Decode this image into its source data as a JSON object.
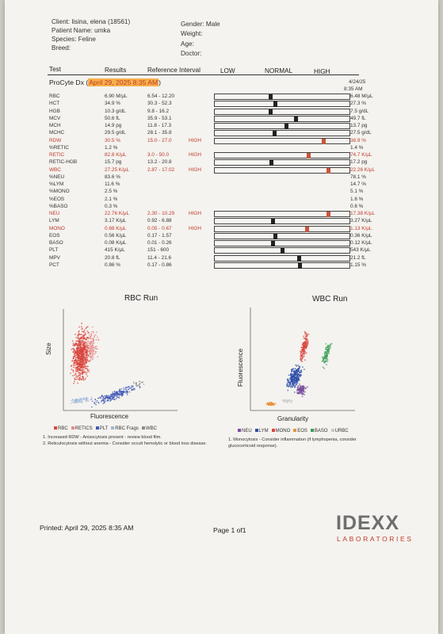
{
  "patient": {
    "client": "Client: lisina, elena (18561)",
    "patient": "Patient Name: umka",
    "species": "Species: Feline",
    "breed": "Breed:",
    "gender": "Gender: Male",
    "weight": "Weight:",
    "age": "Age:",
    "doctor": "Doctor:"
  },
  "columns": {
    "test": "Test",
    "results": "Results",
    "reference": "Reference Interval",
    "low": "LOW",
    "normal": "NORMAL",
    "high": "HIGH"
  },
  "run": {
    "prefix": "ProCyte Dx (",
    "date": "April 29, 2025 8:35 AM",
    "suffix": ")",
    "right_date": "4/24/25",
    "right_time": "8:35 AM"
  },
  "rows": [
    {
      "test": "RBC",
      "result": "6.90 M/µL",
      "ref": "6.54 - 12.20",
      "flag": "",
      "right": "6.48 M/µL",
      "abnormal": false,
      "marker": 0.41
    },
    {
      "test": "HCT",
      "result": "34.9 %",
      "ref": "30.3 - 52.3",
      "flag": "",
      "right": "27.3 %",
      "abnormal": false,
      "marker": 0.45
    },
    {
      "test": "HGB",
      "result": "10.3 g/dL",
      "ref": "9.8 - 16.2",
      "flag": "",
      "right": "7.5 g/dL",
      "abnormal": false,
      "marker": 0.41
    },
    {
      "test": "MCV",
      "result": "50.6 fL",
      "ref": "35.9 - 53.1",
      "flag": "",
      "right": "49.7 fL",
      "abnormal": false,
      "marker": 0.6
    },
    {
      "test": "MCH",
      "result": "14.9 pg",
      "ref": "11.8 - 17.3",
      "flag": "",
      "right": "13.7 pg",
      "abnormal": false,
      "marker": 0.53
    },
    {
      "test": "MCHC",
      "result": "29.5 g/dL",
      "ref": "28.1 - 35.8",
      "flag": "",
      "right": "27.5 g/dL",
      "abnormal": false,
      "marker": 0.44
    },
    {
      "test": "RDW",
      "result": "30.5 %",
      "ref": "15.0 - 27.0",
      "flag": "HIGH",
      "right": "38.9 %",
      "abnormal": true,
      "marker": 0.8
    },
    {
      "test": "%RETIC",
      "result": "1.2 %",
      "ref": "",
      "flag": "",
      "right": "1.4 %",
      "abnormal": false,
      "marker": null
    },
    {
      "test": "RETIC",
      "result": "82.8 K/µL",
      "ref": "3.0 - 50.0",
      "flag": "HIGH",
      "right": "74.7 K/µL",
      "abnormal": true,
      "marker": 0.69
    },
    {
      "test": "RETIC-HGB",
      "result": "15.7 pg",
      "ref": "13.2 - 20.8",
      "flag": "",
      "right": "17.2 pg",
      "abnormal": false,
      "marker": 0.42
    },
    {
      "test": "WBC",
      "result": "27.25 K/µL",
      "ref": "2.87 - 17.02",
      "flag": "HIGH",
      "right": "22.26 K/µL",
      "abnormal": true,
      "marker": 0.84
    },
    {
      "test": "%NEU",
      "result": "83.6 %",
      "ref": "",
      "flag": "",
      "right": "78.1 %",
      "abnormal": false,
      "marker": null
    },
    {
      "test": "%LYM",
      "result": "11.6 %",
      "ref": "",
      "flag": "",
      "right": "14.7 %",
      "abnormal": false,
      "marker": null
    },
    {
      "test": "%MONO",
      "result": "2.5 %",
      "ref": "",
      "flag": "",
      "right": "5.1 %",
      "abnormal": false,
      "marker": null
    },
    {
      "test": "%EOS",
      "result": "2.1 %",
      "ref": "",
      "flag": "",
      "right": "1.6 %",
      "abnormal": false,
      "marker": null
    },
    {
      "test": "%BASO",
      "result": "0.3 %",
      "ref": "",
      "flag": "",
      "right": "0.6 %",
      "abnormal": false,
      "marker": null
    },
    {
      "test": "NEU",
      "result": "22.76 K/µL",
      "ref": "2.30 - 10.29",
      "flag": "HIGH",
      "right": "17.38 K/µL",
      "abnormal": true,
      "marker": 0.84
    },
    {
      "test": "LYM",
      "result": "3.17 K/µL",
      "ref": "0.92 - 6.88",
      "flag": "",
      "right": "3.27 K/µL",
      "abnormal": false,
      "marker": 0.43
    },
    {
      "test": "MONO",
      "result": "0.68 K/µL",
      "ref": "0.05 - 0.67",
      "flag": "HIGH",
      "right": "1.13 K/µL",
      "abnormal": true,
      "marker": 0.68
    },
    {
      "test": "EOS",
      "result": "0.56 K/µL",
      "ref": "0.17 - 1.57",
      "flag": "",
      "right": "0.36 K/µL",
      "abnormal": false,
      "marker": 0.45
    },
    {
      "test": "BASO",
      "result": "0.08 K/µL",
      "ref": "0.01 - 0.26",
      "flag": "",
      "right": "0.12 K/µL",
      "abnormal": false,
      "marker": 0.43
    },
    {
      "test": "PLT",
      "result": "415 K/µL",
      "ref": "151 - 600",
      "flag": "",
      "right": "543 K/µL",
      "abnormal": false,
      "marker": 0.5
    },
    {
      "test": "MPV",
      "result": "20.8 fL",
      "ref": "11.4 - 21.6",
      "flag": "",
      "right": "21.2 fL",
      "abnormal": false,
      "marker": 0.62
    },
    {
      "test": "PCT",
      "result": "0.86 %",
      "ref": "0.17 - 0.86",
      "flag": "",
      "right": "1.15 %",
      "abnormal": false,
      "marker": 0.63
    }
  ],
  "rbc_chart": {
    "title": "RBC Run",
    "xlabel": "Fluorescence",
    "ylabel": "Size",
    "legend": [
      {
        "label": "RBC",
        "color": "#d9463e"
      },
      {
        "label": "RETICS",
        "color": "#e68b8b"
      },
      {
        "label": "PLT",
        "color": "#3f57b5"
      },
      {
        "label": "RBC Frags",
        "color": "#9fb5d9"
      },
      {
        "label": "WBC",
        "color": "#8a8a8a"
      }
    ],
    "notes": [
      "1. Increased RDW - Anisocytosis present - review blood film.",
      "2. Reticulocytosis without anemia - Consider occult hemolytic or blood loss disease."
    ]
  },
  "wbc_chart": {
    "title": "WBC Run",
    "xlabel": "Granularity",
    "ylabel": "Fluorescence",
    "legend": [
      {
        "label": "NEU",
        "color": "#7b4fa0"
      },
      {
        "label": "LYM",
        "color": "#2e4fa8"
      },
      {
        "label": "MONO",
        "color": "#d9463e"
      },
      {
        "label": "EOS",
        "color": "#e8923c"
      },
      {
        "label": "BASO",
        "color": "#3aa055"
      },
      {
        "label": "URBC",
        "color": "#c9c9c9"
      }
    ],
    "notes": [
      "1. Monocytosis - Consider inflammation (if lymphopenia, consider glucocorticoid response)."
    ]
  },
  "footer": {
    "printed": "Printed: April 29, 2025 8:35 AM",
    "page": "Page 1 of1",
    "brand": "IDEXX",
    "brand_sub": "LABORATORIES"
  },
  "colors": {
    "abnormal_text": "#c0392b",
    "marker_normal": "#222222",
    "marker_abnormal": "#c8553d",
    "date_highlight": "#f7b04a"
  }
}
